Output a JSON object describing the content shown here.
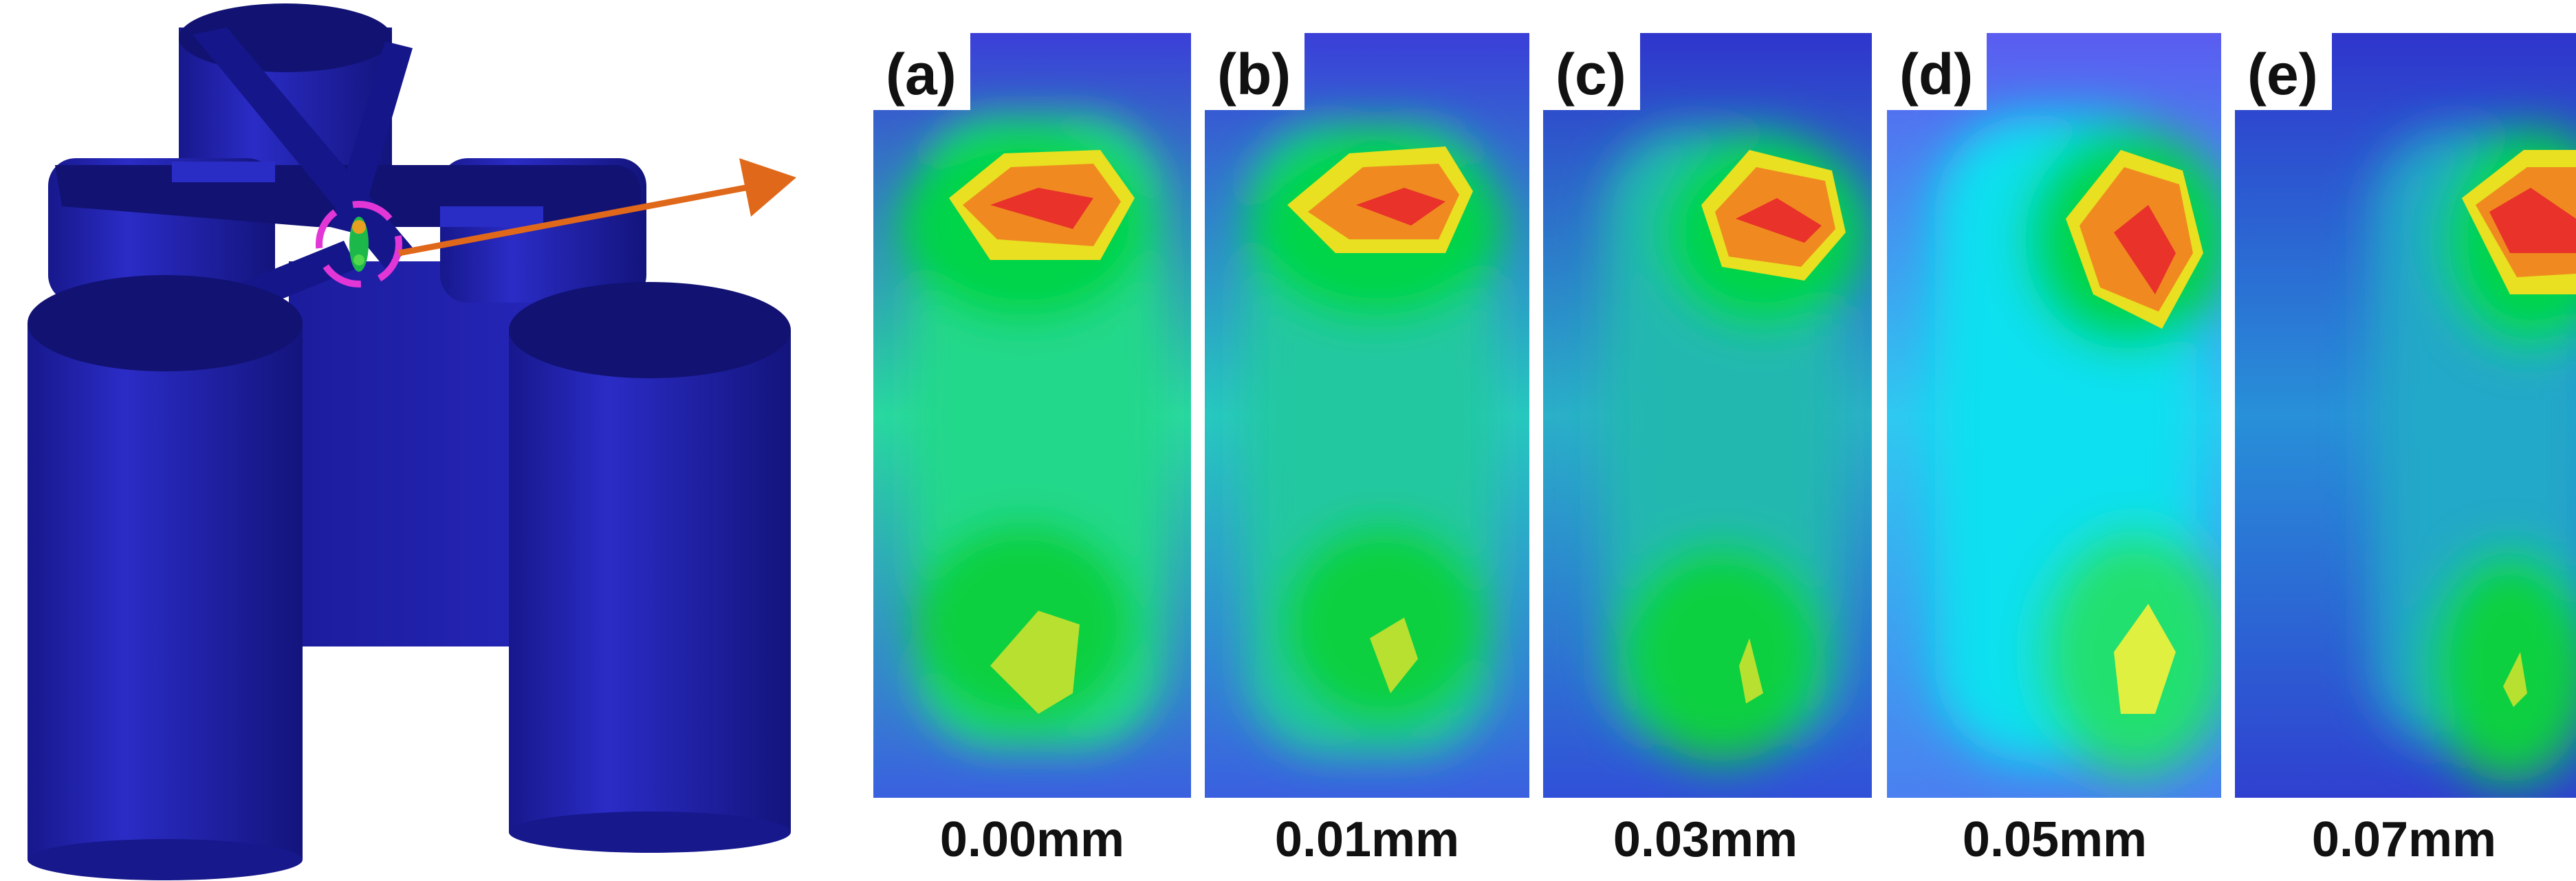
{
  "panels": [
    {
      "tag": "(a)",
      "caption": "0.00mm"
    },
    {
      "tag": "(b)",
      "caption": "0.01mm"
    },
    {
      "tag": "(c)",
      "caption": "0.03mm"
    },
    {
      "tag": "(d)",
      "caption": "0.05mm"
    },
    {
      "tag": "(e)",
      "caption": "0.07mm"
    }
  ],
  "colors": {
    "model_body": "#1e1fa8",
    "model_top": "#121273",
    "callout_circle": "#e236d6",
    "callout_arrow": "#e0681a",
    "map_low": "#3a3fd8",
    "map_mid": "#00d44a",
    "map_high": "#e8322a"
  }
}
